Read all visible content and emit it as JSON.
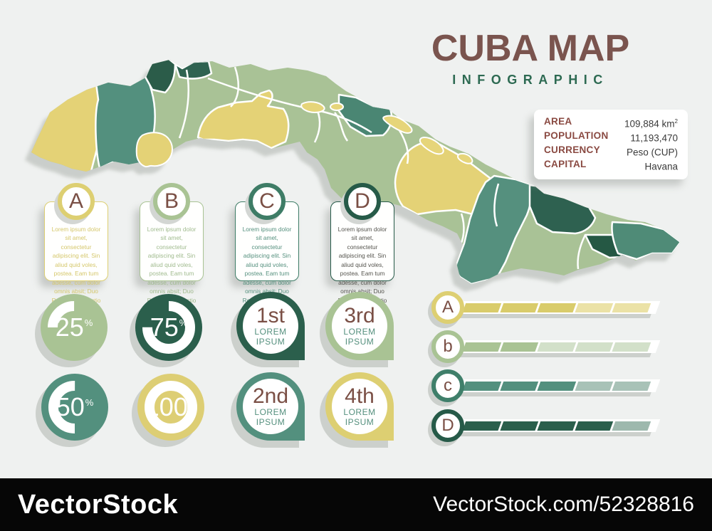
{
  "palette": {
    "background": "#eff1f0",
    "title_brown": "#7a544e",
    "subtitle_green": "#2d6a52",
    "label_red_brown": "#8a4a42",
    "map_sage": "#a9c296",
    "map_yellow": "#e4d276",
    "map_teal": "#53907e",
    "map_teal_dark": "#2e6150",
    "map_green_darkest": "#255844",
    "shadow_gray": "#c7cbc7",
    "watermark_bg": "#060606"
  },
  "header": {
    "title": "CUBA MAP",
    "subtitle": "INFOGRAPHIC"
  },
  "facts": {
    "rows": [
      {
        "label": "AREA",
        "value": "109,884 km",
        "value_sup": "2"
      },
      {
        "label": "POPULATION",
        "value": "11,193,470",
        "value_sup": ""
      },
      {
        "label": "CURRENCY",
        "value": "Peso (CUP)",
        "value_sup": ""
      },
      {
        "label": "CAPITAL",
        "value": "Havana",
        "value_sup": ""
      }
    ]
  },
  "cards": [
    {
      "letter": "A",
      "color": "#ddcf72",
      "text_color": "#d5c76b",
      "text": "Lorem ipsum dolor sit amet, consectetur adipiscing elit. Sin aliud quid voles, postea. Eam tum adesse, cum dolor omnis absit; Duo Reges: constructio"
    },
    {
      "letter": "B",
      "color": "#a9c394",
      "text_color": "#a0bb8e",
      "text": "Lorem ipsum dolor sit amet, consectetur adipiscing elit. Sin aliud quid voles, postea. Eam tum adesse, cum dolor omnis absit; Duo Reges: constructio"
    },
    {
      "letter": "C",
      "color": "#3e7c66",
      "text_color": "#55907e",
      "text": "Lorem ipsum dolor sit amet, consectetur adipiscing elit. Sin aliud quid voles, postea. Eam tum adesse, cum dolor omnis absit; Duo Reges: constructio"
    },
    {
      "letter": "D",
      "color": "#265a48",
      "text_color": "#55544e",
      "text": "Lorem ipsum dolor sit amet, consectetur adipiscing elit. Sin aliud quid voles, postea. Eam tum adesse, cum dolor omnis absit; Duo Reges: constructio"
    }
  ],
  "chart_data": [
    {
      "type": "pie",
      "title": "donut-stats",
      "values": [
        25,
        75,
        50,
        100
      ],
      "unit": "%"
    },
    {
      "type": "bar",
      "title": "segmented-progress-bars",
      "categories": [
        "A",
        "b",
        "c",
        "D"
      ],
      "values": [
        3,
        2,
        3,
        4
      ],
      "ylim": [
        0,
        5
      ]
    }
  ],
  "donuts": [
    {
      "value": "25",
      "unit": "%",
      "percent": 25,
      "color": "#a9c394"
    },
    {
      "value": "75",
      "unit": "%",
      "percent": 75,
      "color": "#2b5f4c"
    },
    {
      "value": "50",
      "unit": "%",
      "percent": 50,
      "color": "#53907e"
    },
    {
      "value": "100",
      "unit": "%",
      "percent": 100,
      "color": "#ddce74"
    }
  ],
  "pins": [
    {
      "rank": "1st",
      "caption_line1": "LOREM",
      "caption_line2": "IPSUM",
      "color": "#2b5f4c"
    },
    {
      "rank": "3rd",
      "caption_line1": "LOREM",
      "caption_line2": "IPSUM",
      "color": "#a9c394"
    },
    {
      "rank": "2nd",
      "caption_line1": "LOREM",
      "caption_line2": "IPSUM",
      "color": "#53907e"
    },
    {
      "rank": "4th",
      "caption_line1": "LOREM",
      "caption_line2": "IPSUM",
      "color": "#ddcf72"
    }
  ],
  "bars": {
    "rows": [
      {
        "label": "A",
        "filled": 3,
        "total": 5,
        "fill_color": "#d9cc6b",
        "empty_color": "#ebe2a6",
        "ring_color": "#ddcf72"
      },
      {
        "label": "b",
        "filled": 2,
        "total": 5,
        "fill_color": "#a9c394",
        "empty_color": "#d2e0c9",
        "ring_color": "#a9c394"
      },
      {
        "label": "c",
        "filled": 3,
        "total": 5,
        "fill_color": "#53907e",
        "empty_color": "#a8c2b7",
        "ring_color": "#3f7f6a"
      },
      {
        "label": "D",
        "filled": 4,
        "total": 5,
        "fill_color": "#2b5f4c",
        "empty_color": "#9db8ad",
        "ring_color": "#265a48"
      }
    ]
  },
  "watermark": {
    "brand": "VectorStock",
    "url_text": "VectorStock.com/52328816"
  }
}
